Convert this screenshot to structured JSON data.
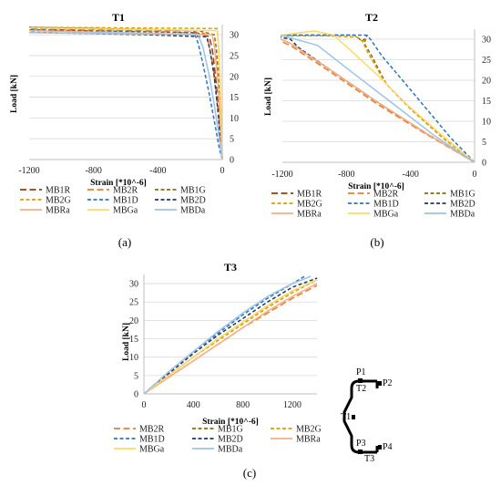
{
  "colors": {
    "MB1R": "#9c3a0e",
    "MB2R": "#ed7d31",
    "MB1G": "#8a6d0b",
    "MB2G": "#d9a100",
    "MB1D": "#2e75b6",
    "MB2D": "#1f3864",
    "MBRa": "#f4b183",
    "MBGa": "#ffd966",
    "MBDa": "#9dc3e6"
  },
  "chart_data": [
    {
      "id": "t1",
      "type": "line",
      "title": "T1",
      "xlabel": "Strain [*10^-6]",
      "ylabel": "Load [kN]",
      "xlim": [
        -1200,
        0
      ],
      "ylim": [
        0,
        32
      ],
      "xticks": [
        "-1200",
        "-800",
        "-400",
        "0"
      ],
      "xtick_values": [
        -1200,
        -800,
        -400,
        0
      ],
      "yticks": [
        "0",
        "5",
        "10",
        "15",
        "20",
        "25",
        "30"
      ],
      "ytick_values": [
        0,
        5,
        10,
        15,
        20,
        25,
        30
      ],
      "grid": "horizontal",
      "caption": "(a)",
      "legend": [
        "MB1R",
        "MB2R",
        "MB1G",
        "MB2G",
        "MB1D",
        "MB2D",
        "MBRa",
        "MBGa",
        "MBDa"
      ],
      "series": [
        {
          "name": "MB1R",
          "dash": "long",
          "points": [
            [
              0,
              0
            ],
            [
              -5,
              3
            ],
            [
              -15,
              8
            ],
            [
              -28,
              14
            ],
            [
              -42,
              20
            ],
            [
              -60,
              26
            ],
            [
              -80,
              29.5
            ],
            [
              -200,
              31
            ],
            [
              -1200,
              31.5
            ]
          ]
        },
        {
          "name": "MB2R",
          "dash": "long",
          "points": [
            [
              0,
              0
            ],
            [
              -8,
              4
            ],
            [
              -22,
              10
            ],
            [
              -40,
              17
            ],
            [
              -60,
              23
            ],
            [
              -85,
              28
            ],
            [
              -110,
              30.3
            ],
            [
              -380,
              30.8
            ],
            [
              -1200,
              31.2
            ]
          ]
        },
        {
          "name": "MB1G",
          "dash": "short",
          "points": [
            [
              0,
              0
            ],
            [
              -4,
              3
            ],
            [
              -10,
              9
            ],
            [
              -18,
              16
            ],
            [
              -28,
              22
            ],
            [
              -38,
              27
            ],
            [
              -50,
              30
            ],
            [
              -150,
              31
            ],
            [
              -1200,
              31.8
            ]
          ]
        },
        {
          "name": "MB2G",
          "dash": "short",
          "points": [
            [
              0,
              0
            ],
            [
              -3,
              4
            ],
            [
              -8,
              11
            ],
            [
              -14,
              18
            ],
            [
              -20,
              24
            ],
            [
              -26,
              29
            ],
            [
              -32,
              31.5
            ],
            [
              -1200,
              31.8
            ]
          ]
        },
        {
          "name": "MB1D",
          "dash": "short",
          "points": [
            [
              0,
              0
            ],
            [
              -20,
              3
            ],
            [
              -48,
              9
            ],
            [
              -82,
              16
            ],
            [
              -120,
              23
            ],
            [
              -150,
              28
            ],
            [
              -175,
              30.5
            ],
            [
              -1200,
              31.2
            ]
          ]
        },
        {
          "name": "MB2D",
          "dash": "short",
          "points": [
            [
              0,
              0
            ],
            [
              -10,
              4
            ],
            [
              -28,
              12
            ],
            [
              -50,
              20
            ],
            [
              -75,
              26
            ],
            [
              -95,
              29.5
            ],
            [
              -470,
              30
            ],
            [
              -1200,
              30.6
            ]
          ]
        },
        {
          "name": "MBRa",
          "dash": "solid",
          "points": [
            [
              0,
              0
            ],
            [
              -6,
              5
            ],
            [
              -16,
              12
            ],
            [
              -30,
              20
            ],
            [
              -48,
              27
            ],
            [
              -62,
              30
            ],
            [
              -1200,
              31
            ]
          ]
        },
        {
          "name": "MBGa",
          "dash": "solid",
          "points": [
            [
              0,
              0
            ],
            [
              -3,
              5
            ],
            [
              -8,
              12
            ],
            [
              -14,
              20
            ],
            [
              -22,
              27
            ],
            [
              -30,
              31
            ],
            [
              -1200,
              31.6
            ]
          ]
        },
        {
          "name": "MBDa",
          "dash": "solid",
          "points": [
            [
              0,
              0
            ],
            [
              -18,
              5
            ],
            [
              -45,
              12
            ],
            [
              -80,
              20
            ],
            [
              -120,
              27
            ],
            [
              -150,
              30
            ],
            [
              -1200,
              30.5
            ]
          ]
        }
      ]
    },
    {
      "id": "t2",
      "type": "line",
      "title": "T2",
      "xlabel": "Strain [*10^-6]",
      "ylabel": "Load [kN]",
      "xlim": [
        -1200,
        0
      ],
      "ylim": [
        0,
        32
      ],
      "xticks": [
        "-1200",
        "-800",
        "-400",
        "0"
      ],
      "xtick_values": [
        -1200,
        -800,
        -400,
        0
      ],
      "yticks": [
        "0",
        "5",
        "10",
        "15",
        "20",
        "25",
        "30"
      ],
      "ytick_values": [
        0,
        5,
        10,
        15,
        20,
        25,
        30
      ],
      "grid": "horizontal",
      "caption": "(b)",
      "legend": [
        "MB1R",
        "MB2R",
        "MB1G",
        "MB2G",
        "MB1D",
        "MB2D",
        "MBRa",
        "MBGa",
        "MBDa"
      ],
      "series": [
        {
          "name": "MB1R",
          "dash": "long",
          "points": [
            [
              0,
              0
            ],
            [
              -300,
              7
            ],
            [
              -600,
              14.5
            ],
            [
              -900,
              22.5
            ],
            [
              -1150,
              29
            ],
            [
              -1210,
              30
            ]
          ]
        },
        {
          "name": "MB2R",
          "dash": "long",
          "points": [
            [
              0,
              0
            ],
            [
              -300,
              6.8
            ],
            [
              -600,
              14
            ],
            [
              -900,
              22
            ],
            [
              -1150,
              28.5
            ],
            [
              -1210,
              29.5
            ]
          ]
        },
        {
          "name": "MB1G",
          "dash": "short",
          "points": [
            [
              0,
              0
            ],
            [
              -200,
              6
            ],
            [
              -400,
              13
            ],
            [
              -550,
              19
            ],
            [
              -650,
              26.5
            ],
            [
              -690,
              29
            ],
            [
              -670,
              31
            ],
            [
              -700,
              29.5
            ],
            [
              -750,
              31
            ],
            [
              -1000,
              31
            ],
            [
              -1210,
              31
            ]
          ]
        },
        {
          "name": "MB2G",
          "dash": "short",
          "points": [
            [
              0,
              0
            ],
            [
              -200,
              6
            ],
            [
              -400,
              13
            ],
            [
              -560,
              19.5
            ],
            [
              -670,
              27
            ],
            [
              -700,
              29.5
            ],
            [
              -730,
              30.5
            ],
            [
              -900,
              30.8
            ],
            [
              -1210,
              30.8
            ]
          ]
        },
        {
          "name": "MB1D",
          "dash": "short",
          "points": [
            [
              0,
              0
            ],
            [
              -150,
              6
            ],
            [
              -300,
              13
            ],
            [
              -450,
              20
            ],
            [
              -580,
              26
            ],
            [
              -650,
              30
            ],
            [
              -680,
              31
            ],
            [
              -1210,
              31
            ]
          ]
        },
        {
          "name": "MB2D",
          "dash": "short",
          "points": [
            [
              0,
              0
            ],
            [
              -300,
              7
            ],
            [
              -600,
              14.5
            ],
            [
              -900,
              22.5
            ],
            [
              -1100,
              28
            ],
            [
              -1150,
              30
            ],
            [
              -1210,
              30.5
            ]
          ]
        },
        {
          "name": "MBRa",
          "dash": "solid",
          "points": [
            [
              0,
              0
            ],
            [
              -300,
              7
            ],
            [
              -600,
              14.5
            ],
            [
              -900,
              22.5
            ],
            [
              -1150,
              29
            ],
            [
              -1210,
              30
            ]
          ]
        },
        {
          "name": "MBGa",
          "dash": "solid",
          "points": [
            [
              0,
              0
            ],
            [
              -200,
              6.5
            ],
            [
              -420,
              14
            ],
            [
              -600,
              21
            ],
            [
              -780,
              27.5
            ],
            [
              -880,
              31
            ],
            [
              -1000,
              32
            ],
            [
              -1210,
              31
            ]
          ]
        },
        {
          "name": "MBDa",
          "dash": "solid",
          "points": [
            [
              0,
              0
            ],
            [
              -250,
              6.5
            ],
            [
              -500,
              14
            ],
            [
              -750,
              21.5
            ],
            [
              -980,
              28.5
            ],
            [
              -1210,
              31
            ]
          ]
        }
      ]
    },
    {
      "id": "t3",
      "type": "line",
      "title": "T3",
      "xlabel": "Strain [*10^-6]",
      "ylabel": "Load [kN]",
      "xlim": [
        0,
        1400
      ],
      "ylim": [
        0,
        32
      ],
      "xticks": [
        "0",
        "400",
        "800",
        "1200"
      ],
      "xtick_values": [
        0,
        400,
        800,
        1200
      ],
      "yticks": [
        "0",
        "5",
        "10",
        "15",
        "20",
        "25",
        "30"
      ],
      "ytick_values": [
        0,
        5,
        10,
        15,
        20,
        25,
        30
      ],
      "grid": "horizontal",
      "caption": "(c)",
      "legend": [
        "MB2R",
        "MB1G",
        "MB2G",
        "MB1D",
        "MB2D",
        "MBRa",
        "MBGa",
        "MBDa"
      ],
      "series": [
        {
          "name": "MB2R",
          "dash": "long",
          "points": [
            [
              0,
              0
            ],
            [
              200,
              4.5
            ],
            [
              400,
              9
            ],
            [
              600,
              13.5
            ],
            [
              800,
              18
            ],
            [
              1000,
              22
            ],
            [
              1200,
              26
            ],
            [
              1400,
              29.5
            ]
          ]
        },
        {
          "name": "MB1G",
          "dash": "short",
          "points": [
            [
              0,
              0
            ],
            [
              200,
              5
            ],
            [
              400,
              10
            ],
            [
              600,
              15
            ],
            [
              800,
              19.5
            ],
            [
              1000,
              24
            ],
            [
              1200,
              28
            ],
            [
              1400,
              31
            ]
          ]
        },
        {
          "name": "MB2G",
          "dash": "short",
          "points": [
            [
              0,
              0
            ],
            [
              200,
              5
            ],
            [
              400,
              10
            ],
            [
              600,
              14.5
            ],
            [
              800,
              19
            ],
            [
              1000,
              23.5
            ],
            [
              1200,
              27.5
            ],
            [
              1400,
              31
            ]
          ]
        },
        {
          "name": "MB1D",
          "dash": "short",
          "points": [
            [
              0,
              0
            ],
            [
              200,
              6
            ],
            [
              400,
              11.5
            ],
            [
              600,
              16.5
            ],
            [
              800,
              21.5
            ],
            [
              1000,
              26
            ],
            [
              1200,
              30
            ],
            [
              1300,
              32
            ]
          ]
        },
        {
          "name": "MB2D",
          "dash": "short",
          "points": [
            [
              0,
              0
            ],
            [
              200,
              5.5
            ],
            [
              400,
              11
            ],
            [
              600,
              16
            ],
            [
              800,
              20.5
            ],
            [
              1000,
              25
            ],
            [
              1200,
              29
            ],
            [
              1400,
              31.5
            ]
          ]
        },
        {
          "name": "MBRa",
          "dash": "solid",
          "points": [
            [
              0,
              0
            ],
            [
              200,
              4.5
            ],
            [
              400,
              9
            ],
            [
              600,
              13.5
            ],
            [
              800,
              18
            ],
            [
              1000,
              22.5
            ],
            [
              1200,
              26.5
            ],
            [
              1400,
              30
            ]
          ]
        },
        {
          "name": "MBGa",
          "dash": "solid",
          "points": [
            [
              0,
              0
            ],
            [
              200,
              5
            ],
            [
              400,
              10
            ],
            [
              600,
              15
            ],
            [
              800,
              19.5
            ],
            [
              1000,
              24
            ],
            [
              1200,
              28
            ],
            [
              1400,
              31
            ]
          ]
        },
        {
          "name": "MBDa",
          "dash": "solid",
          "points": [
            [
              0,
              0
            ],
            [
              200,
              6
            ],
            [
              400,
              11.5
            ],
            [
              600,
              17
            ],
            [
              800,
              22
            ],
            [
              1000,
              26.5
            ],
            [
              1200,
              30
            ],
            [
              1350,
              32
            ]
          ]
        }
      ]
    }
  ],
  "section_diagram": {
    "labels": [
      "P1",
      "P2",
      "T2",
      "T1",
      "P3",
      "P4",
      "T3"
    ]
  }
}
